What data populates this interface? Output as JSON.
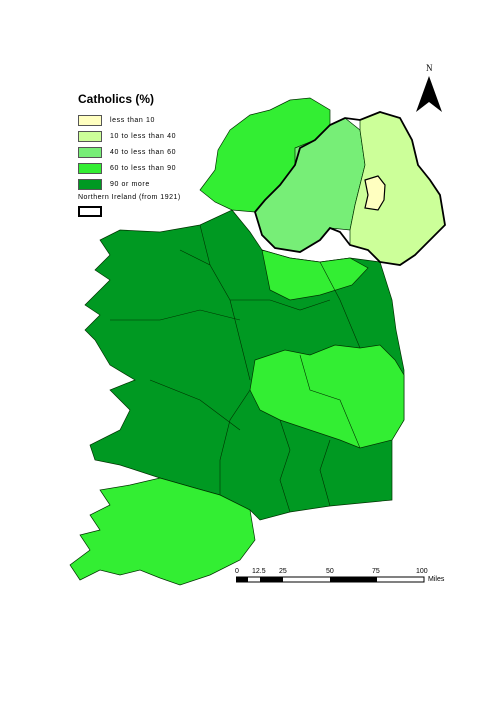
{
  "legend": {
    "title": "Catholics (%)",
    "classes": [
      {
        "label": "less than 10",
        "color": "#ffffc0"
      },
      {
        "label": "10 to less than 40",
        "color": "#ccff99"
      },
      {
        "label": "40 to less than 60",
        "color": "#77ee77"
      },
      {
        "label": "60 to less than 90",
        "color": "#33ee33"
      },
      {
        "label": "90 or more",
        "color": "#009922"
      }
    ],
    "ni_label": "Northern Ireland (from 1921)"
  },
  "north_arrow": {
    "label": "N"
  },
  "scale": {
    "ticks": [
      "0",
      "12.5",
      "25",
      "50",
      "75",
      "100"
    ],
    "unit": "Miles"
  }
}
